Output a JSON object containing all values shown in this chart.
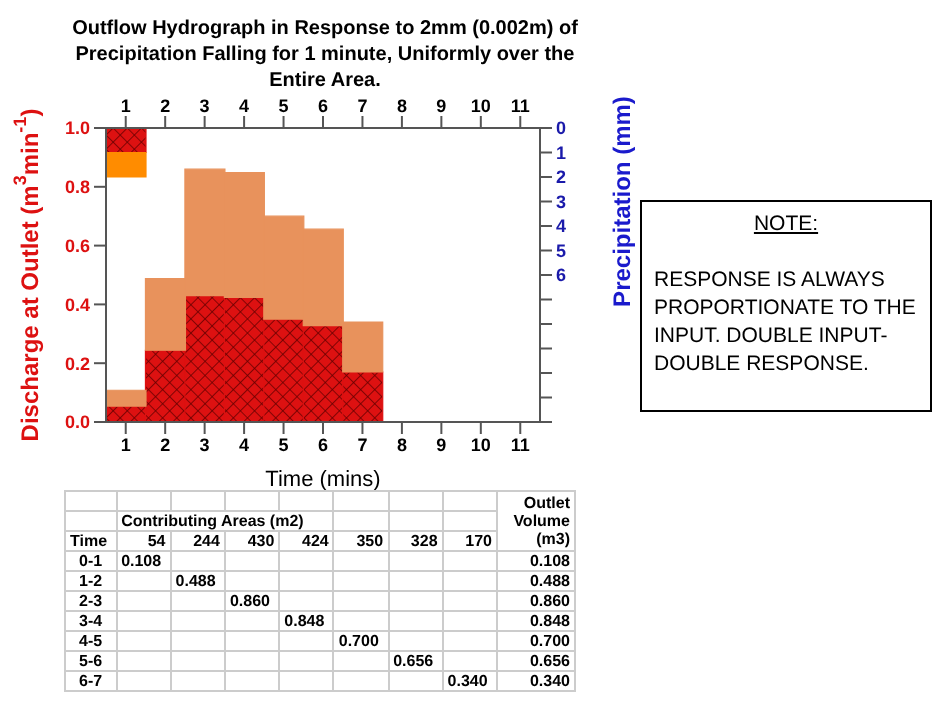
{
  "chart_data": {
    "type": "bar",
    "title": "Outflow Hydrograph in Response to 2mm (0.002m) of  Precipitation Falling for 1 minute, Uniformly over the Entire Area.",
    "xlabel": "Time (mins)",
    "ylabel": "Discharge at Outlet (m$^{3}$min$^{-1}$)",
    "y2label": "Precipitation (mm)",
    "categories": [
      "1",
      "2",
      "3",
      "4",
      "5",
      "6",
      "7",
      "8",
      "9",
      "10",
      "11"
    ],
    "stacked": true,
    "series": [
      {
        "color": "#dd1111",
        "values": [
          0.054,
          0.244,
          0.43,
          0.424,
          0.35,
          0.328,
          0.17,
          null,
          null,
          null,
          null
        ]
      },
      {
        "color": "#e8925c",
        "values": [
          0.054,
          0.244,
          0.43,
          0.424,
          0.35,
          0.328,
          0.17,
          null,
          null,
          null,
          null
        ]
      },
      {
        "color": "#dd1111",
        "axis": "y2",
        "values": [
          1,
          null,
          null,
          null,
          null,
          null,
          null,
          null,
          null,
          null,
          null
        ]
      },
      {
        "color": "#ff8c00",
        "axis": "y2",
        "values": [
          1,
          null,
          null,
          null,
          null,
          null,
          null,
          null,
          null,
          null,
          null
        ]
      }
    ],
    "ylim": [
      0,
      1
    ],
    "yticks": [
      {
        "value": 0,
        "label": "0.0"
      },
      {
        "value": 0.2,
        "label": "0.2"
      },
      {
        "value": 0.4,
        "label": "0.4"
      },
      {
        "value": 0.6,
        "label": "0.6"
      },
      {
        "value": 0.8,
        "label": "0.8"
      },
      {
        "value": 1,
        "label": "1.0"
      }
    ],
    "y2lim": [
      12,
      0
    ],
    "y2ticks": [
      0,
      1,
      2,
      3,
      4,
      5,
      6,
      {
        "value": 7,
        "label": null
      },
      {
        "value": 8,
        "label": null
      },
      {
        "value": 9,
        "label": null
      },
      {
        "value": 10,
        "label": null
      },
      {
        "value": 11,
        "label": null
      },
      {
        "value": 12,
        "label": null
      }
    ],
    "annotations": [
      "NOTE:",
      "RESPONSE IS ALWAYS PROPORTIONATE TO THE INPUT. DOUBLE INPUT- DOUBLE RESPONSE.",
      "Contributing Areas (m2)",
      "Outlet Volume (m3)",
      "Time",
      "54",
      "244",
      "430",
      "424",
      "350",
      "328",
      "170",
      "0-1",
      "1-2",
      "2-3",
      "3-4",
      "4-5",
      "5-6",
      "6-7",
      "0.108",
      "0.488",
      "0.860",
      "0.848",
      "0.700",
      "0.656",
      "0.340"
    ]
  }
}
